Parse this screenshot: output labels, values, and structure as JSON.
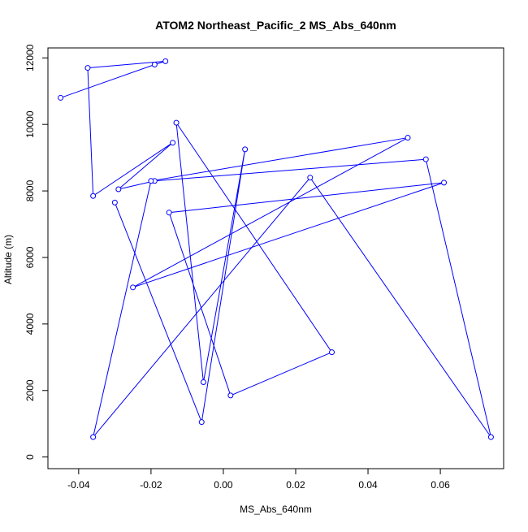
{
  "chart_data": {
    "type": "line",
    "title": "ATOM2 Northeast_Pacific_2 MS_Abs_640nm",
    "xlabel": "MS_Abs_640nm",
    "ylabel": "Altitude (m)",
    "xlim": [
      -0.0485,
      0.0775
    ],
    "ylim": [
      -350,
      12300
    ],
    "xticks": [
      -0.04,
      -0.02,
      0.0,
      0.02,
      0.04,
      0.06
    ],
    "xtick_labels": [
      "-0.04",
      "-0.02",
      "0.00",
      "0.02",
      "0.04",
      "0.06"
    ],
    "yticks": [
      0,
      2000,
      4000,
      6000,
      8000,
      10000,
      12000
    ],
    "ytick_labels": [
      "0",
      "2000",
      "4000",
      "6000",
      "8000",
      "10000",
      "12000"
    ],
    "grid": false,
    "series": [
      {
        "color": "#0000ff",
        "marker": "open-circle",
        "x": [
          -0.045,
          -0.019,
          -0.016,
          -0.0375,
          -0.036,
          -0.014,
          -0.029,
          -0.019,
          0.056,
          0.074,
          0.024,
          -0.036,
          -0.02,
          0.051,
          -0.025,
          0.061,
          -0.015,
          0.002,
          0.03,
          -0.013,
          -0.0055,
          0.006,
          -0.006,
          -0.03
        ],
        "y": [
          10800,
          11800,
          11900,
          11700,
          7850,
          9450,
          8050,
          8300,
          8950,
          600,
          8400,
          600,
          8300,
          9600,
          5100,
          8250,
          7350,
          1850,
          3150,
          10050,
          2250,
          9250,
          1050,
          7650
        ]
      }
    ]
  }
}
